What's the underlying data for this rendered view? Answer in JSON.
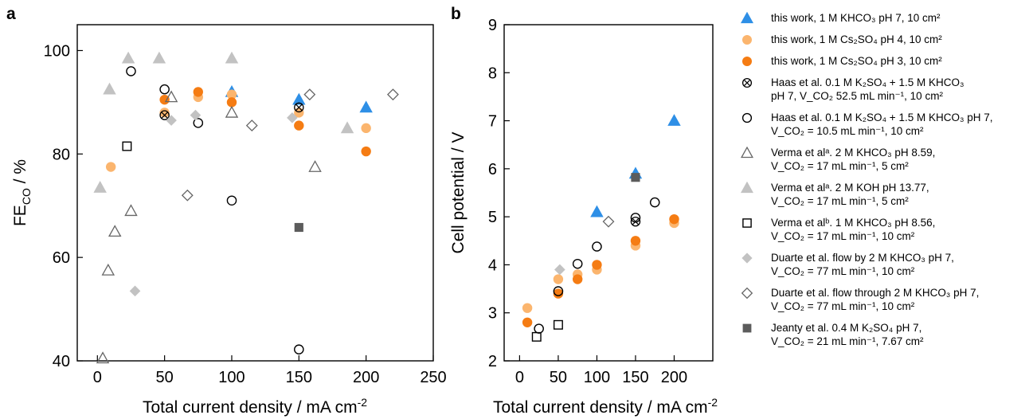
{
  "colors": {
    "blue": "#2e8fe6",
    "light_orange": "#fbb56e",
    "orange": "#f57c13",
    "grey_fill": "#c2c2c2",
    "dark_grey_fill": "#5c5c5c",
    "open_grey": "#666666",
    "black": "#000000"
  },
  "chart_data": [
    {
      "type": "scatter",
      "panel_label": "a",
      "xlabel": "Total current density / mA cm",
      "xlabel_sup": "-2",
      "ylabel_main": "FE",
      "ylabel_sub": "CO",
      "ylabel_unit": " / %",
      "xlim": [
        -15,
        250
      ],
      "ylim": [
        40,
        105
      ],
      "xticks": [
        0,
        50,
        100,
        150,
        200,
        250
      ],
      "yticks": [
        40,
        60,
        80,
        100
      ],
      "grid": false,
      "series": [
        {
          "key": "s1",
          "marker": "triangle-filled-blue",
          "points": [
            [
              100,
              92
            ],
            [
              150,
              90.5
            ],
            [
              200,
              89
            ]
          ]
        },
        {
          "key": "s2",
          "marker": "circle-filled-light-orange",
          "points": [
            [
              10,
              77.5
            ],
            [
              50,
              88
            ],
            [
              75,
              91
            ],
            [
              100,
              91.5
            ],
            [
              150,
              88
            ],
            [
              200,
              85
            ]
          ]
        },
        {
          "key": "s3",
          "marker": "circle-filled-orange",
          "points": [
            [
              50,
              90.5
            ],
            [
              75,
              92
            ],
            [
              100,
              90
            ],
            [
              150,
              85.5
            ],
            [
              200,
              80.5
            ]
          ]
        },
        {
          "key": "s4",
          "marker": "circle-crossed",
          "points": [
            [
              50,
              87.5
            ],
            [
              150,
              89
            ]
          ]
        },
        {
          "key": "s5",
          "marker": "circle-open",
          "points": [
            [
              25,
              96
            ],
            [
              50,
              92.5
            ],
            [
              75,
              86
            ],
            [
              100,
              71
            ],
            [
              150,
              42.2
            ]
          ]
        },
        {
          "key": "s6",
          "marker": "triangle-open-grey",
          "points": [
            [
              4,
              40.5
            ],
            [
              8,
              57.5
            ],
            [
              13,
              65
            ],
            [
              25,
              69
            ],
            [
              55,
              91
            ],
            [
              100,
              88
            ],
            [
              162,
              77.5
            ]
          ]
        },
        {
          "key": "s7",
          "marker": "triangle-filled-grey",
          "points": [
            [
              2,
              73.5
            ],
            [
              9,
              92.5
            ],
            [
              23,
              98.5
            ],
            [
              46,
              98.5
            ],
            [
              100,
              98.5
            ],
            [
              186,
              85
            ]
          ]
        },
        {
          "key": "s8",
          "marker": "square-open",
          "points": [
            [
              22,
              81.5
            ]
          ]
        },
        {
          "key": "s9",
          "marker": "diamond-filled-grey",
          "points": [
            [
              28,
              53.5
            ],
            [
              55,
              86.5
            ],
            [
              73,
              87.5
            ],
            [
              145,
              87
            ]
          ]
        },
        {
          "key": "s10",
          "marker": "diamond-open",
          "points": [
            [
              67,
              72
            ],
            [
              115,
              85.5
            ],
            [
              158,
              91.5
            ],
            [
              220,
              91.5
            ]
          ]
        },
        {
          "key": "s11",
          "marker": "square-filled-dark",
          "points": [
            [
              150,
              65.8
            ]
          ]
        }
      ]
    },
    {
      "type": "scatter",
      "panel_label": "b",
      "xlabel": "Total current density / mA cm",
      "xlabel_sup": "-2",
      "ylabel_main": "Cell potential / V",
      "xlim": [
        -20,
        250
      ],
      "ylim": [
        2,
        9
      ],
      "xticks": [
        0,
        50,
        100,
        150,
        200
      ],
      "yticks": [
        2,
        3,
        4,
        5,
        6,
        7,
        8,
        9
      ],
      "grid": false,
      "series": [
        {
          "key": "s1",
          "marker": "triangle-filled-blue",
          "points": [
            [
              100,
              5.1
            ],
            [
              150,
              5.9
            ],
            [
              200,
              7.0
            ]
          ]
        },
        {
          "key": "s2",
          "marker": "circle-filled-light-orange",
          "points": [
            [
              10,
              3.1
            ],
            [
              50,
              3.7
            ],
            [
              75,
              3.8
            ],
            [
              100,
              3.9
            ],
            [
              150,
              4.4
            ],
            [
              200,
              4.87
            ]
          ]
        },
        {
          "key": "s3",
          "marker": "circle-filled-orange",
          "points": [
            [
              10,
              2.8
            ],
            [
              50,
              3.4
            ],
            [
              75,
              3.7
            ],
            [
              100,
              4.0
            ],
            [
              150,
              4.5
            ],
            [
              200,
              4.95
            ]
          ]
        },
        {
          "key": "s4",
          "marker": "circle-crossed",
          "points": [
            [
              150,
              4.9
            ]
          ]
        },
        {
          "key": "s5",
          "marker": "circle-open",
          "points": [
            [
              25,
              2.67
            ],
            [
              50,
              3.45
            ],
            [
              75,
              4.02
            ],
            [
              100,
              4.38
            ],
            [
              150,
              4.98
            ],
            [
              175,
              5.3
            ]
          ]
        },
        {
          "key": "s8",
          "marker": "square-open",
          "points": [
            [
              22,
              2.5
            ],
            [
              50,
              2.75
            ]
          ]
        },
        {
          "key": "s9",
          "marker": "diamond-filled-grey",
          "points": [
            [
              52,
              3.9
            ]
          ]
        },
        {
          "key": "s10",
          "marker": "diamond-open",
          "points": [
            [
              115,
              4.9
            ]
          ]
        },
        {
          "key": "s11",
          "marker": "square-filled-dark",
          "points": [
            [
              150,
              5.82
            ]
          ]
        }
      ]
    }
  ],
  "legend": [
    {
      "marker": "triangle-filled-blue",
      "l1": "this work, 1 M KHCO₃ pH 7, 10 cm²",
      "l2": ""
    },
    {
      "marker": "circle-filled-light-orange",
      "l1": "this work, 1 M Cs₂SO₄ pH 4, 10 cm²",
      "l2": ""
    },
    {
      "marker": "circle-filled-orange",
      "l1": "this work, 1 M Cs₂SO₄ pH 3, 10 cm²",
      "l2": ""
    },
    {
      "marker": "circle-crossed",
      "l1": "Haas et al. 0.1 M K₂SO₄ + 1.5 M KHCO₃",
      "l2": " pH 7, V_CO₂ 52.5 mL min⁻¹, 10 cm²"
    },
    {
      "marker": "circle-open",
      "l1": "Haas et al. 0.1 M K₂SO₄ + 1.5 M KHCO₃ pH 7,",
      "l2": "V_CO₂ = 10.5 mL min⁻¹, 10 cm²"
    },
    {
      "marker": "triangle-open-grey",
      "l1": "Verma et alᵃ. 2 M KHCO₃ pH 8.59,",
      "l2": "V_CO₂ = 17 mL min⁻¹, 5 cm²"
    },
    {
      "marker": "triangle-filled-grey",
      "l1": " Verma et alᵃ. 2 M KOH pH 13.77,",
      "l2": "V_CO₂ = 17 mL min⁻¹, 5 cm²"
    },
    {
      "marker": "square-open",
      "l1": "Verma et alᵇ. 1 M KHCO₃ pH 8.56,",
      "l2": "V_CO₂ = 17 mL min⁻¹, 10 cm²"
    },
    {
      "marker": "diamond-filled-grey",
      "l1": "Duarte et al. flow by 2 M KHCO₃ pH 7,",
      "l2": "V_CO₂ = 77 mL min⁻¹, 10 cm²"
    },
    {
      "marker": "diamond-open",
      "l1": "Duarte et al. flow through 2 M KHCO₃ pH 7,",
      "l2": "V_CO₂ = 77 mL min⁻¹, 10 cm²"
    },
    {
      "marker": "square-filled-dark",
      "l1": "Jeanty et al. 0.4 M K₂SO₄ pH 7,",
      "l2": "V_CO₂ = 21 mL min⁻¹, 7.67 cm²"
    }
  ]
}
